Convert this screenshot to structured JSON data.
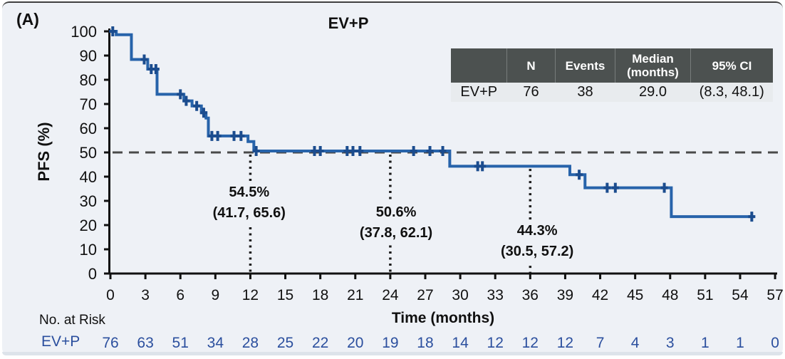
{
  "panel_label": "(A)",
  "title": "EV+P",
  "colors": {
    "panel_bg": "#eef1f6",
    "curve": "#2763aa",
    "censor": "#1b4c8e",
    "axis": "#111111",
    "reference_dash": "#4a4a4a",
    "risk_text": "#2b4f9e",
    "table_header_bg": "#4c5150",
    "table_header_text": "#ffffff",
    "table_row_bg": "#e8ebee"
  },
  "summary_table": {
    "col0": "",
    "col1": "N",
    "col2": "Events",
    "col3a": "Median",
    "col3b": "(months)",
    "col4": "95% CI",
    "row": {
      "name": "EV+P",
      "n": "76",
      "events": "38",
      "median": "29.0",
      "ci": "(8.3, 48.1)"
    }
  },
  "chart_data": {
    "type": "line",
    "subtype": "kaplan-meier-step",
    "title": "EV+P",
    "xlabel": "Time (months)",
    "ylabel": "PFS (%)",
    "xlim": [
      0,
      57
    ],
    "ylim": [
      0,
      100
    ],
    "x_ticks": [
      0,
      3,
      6,
      9,
      12,
      15,
      18,
      21,
      24,
      27,
      30,
      33,
      36,
      39,
      42,
      45,
      48,
      51,
      54,
      57
    ],
    "y_ticks": [
      0,
      10,
      20,
      30,
      40,
      50,
      60,
      70,
      80,
      90,
      100
    ],
    "grid": false,
    "reference_line_pct": 50,
    "series": [
      {
        "name": "EV+P",
        "steps": [
          [
            0,
            100
          ],
          [
            0.5,
            98.6
          ],
          [
            1.8,
            88.4
          ],
          [
            3.2,
            84.4
          ],
          [
            4.0,
            74.0
          ],
          [
            6.3,
            71.3
          ],
          [
            7.0,
            69.2
          ],
          [
            7.8,
            66.4
          ],
          [
            8.2,
            64.2
          ],
          [
            8.4,
            56.8
          ],
          [
            11.8,
            54.5
          ],
          [
            12.3,
            50.6
          ],
          [
            29.1,
            44.3
          ],
          [
            39.4,
            40.8
          ],
          [
            40.7,
            35.4
          ],
          [
            48.1,
            23.5
          ]
        ],
        "end_month": 55.2,
        "censor_marks": [
          [
            0.2,
            100
          ],
          [
            2.9,
            88.4
          ],
          [
            3.5,
            84.4
          ],
          [
            3.9,
            84.4
          ],
          [
            6.0,
            74.0
          ],
          [
            6.5,
            71.3
          ],
          [
            7.4,
            69.2
          ],
          [
            8.0,
            66.4
          ],
          [
            8.7,
            56.8
          ],
          [
            9.2,
            56.8
          ],
          [
            10.6,
            56.8
          ],
          [
            11.2,
            56.8
          ],
          [
            12.5,
            50.6
          ],
          [
            17.5,
            50.6
          ],
          [
            18.0,
            50.6
          ],
          [
            20.3,
            50.6
          ],
          [
            20.8,
            50.6
          ],
          [
            21.4,
            50.6
          ],
          [
            26.0,
            50.6
          ],
          [
            27.4,
            50.6
          ],
          [
            28.5,
            50.6
          ],
          [
            31.5,
            44.3
          ],
          [
            31.9,
            44.3
          ],
          [
            40.2,
            40.8
          ],
          [
            42.6,
            35.4
          ],
          [
            43.3,
            35.4
          ],
          [
            47.5,
            35.4
          ],
          [
            55.0,
            23.5
          ]
        ]
      }
    ],
    "annotations": [
      {
        "month": 12,
        "label": "54.5%",
        "ci": "(41.7, 65.6)",
        "line_top_pct": 49.1,
        "text_month": 11.9,
        "text_center_pct": 29.0
      },
      {
        "month": 24,
        "label": "50.6%",
        "ci": "(37.8, 62.1)",
        "line_top_pct": 49.1,
        "text_month": 24.5,
        "text_center_pct": 20.9
      },
      {
        "month": 36,
        "label": "44.3%",
        "ci": "(30.5, 57.2)",
        "line_top_pct": 43.2,
        "text_month": 36.6,
        "text_center_pct": 13.1
      }
    ],
    "risk_table": {
      "label": "No. at Risk",
      "series": "EV+P",
      "times": [
        0,
        3,
        6,
        9,
        12,
        15,
        18,
        21,
        24,
        27,
        30,
        33,
        36,
        39,
        42,
        45,
        48,
        51,
        54,
        57
      ],
      "counts": [
        76,
        63,
        51,
        34,
        28,
        25,
        22,
        20,
        19,
        18,
        14,
        12,
        12,
        12,
        7,
        4,
        3,
        1,
        1,
        0
      ]
    }
  }
}
